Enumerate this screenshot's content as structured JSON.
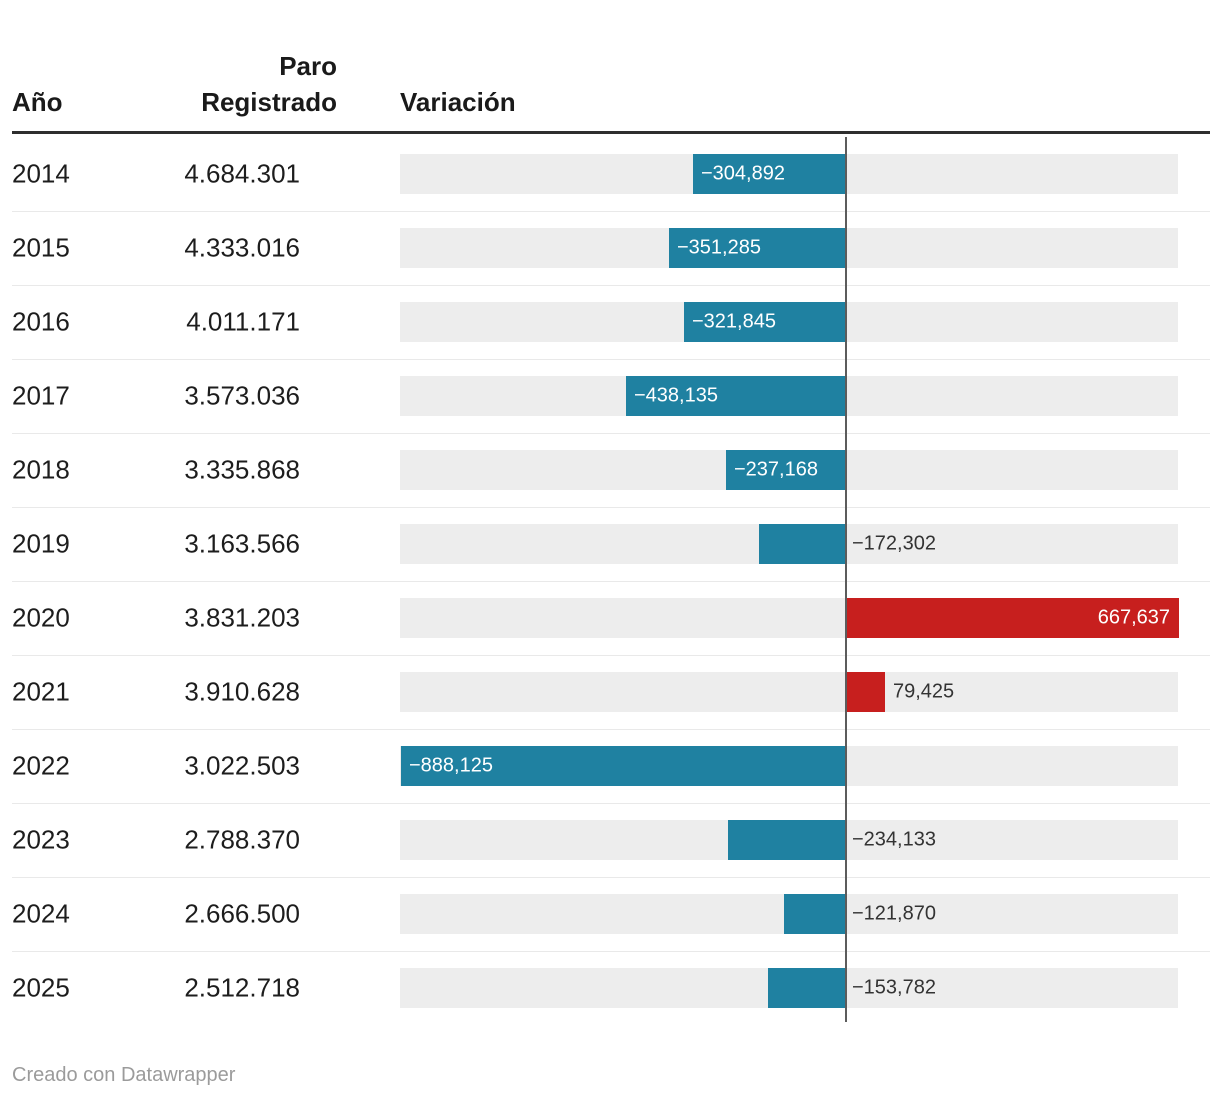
{
  "header": {
    "col_year": "Año",
    "col_paro": "Paro Registrado",
    "col_variacion": "Variación"
  },
  "footer": {
    "credit": "Creado con Datawrapper"
  },
  "colors": {
    "negative_bar": "#1f81a1",
    "positive_bar": "#c71f1e",
    "track": "#ededed",
    "zero_line": "#5c5c5c",
    "header_rule": "#2e2e2e",
    "inside_label": "#ffffff",
    "outside_label": "#333333"
  },
  "chart_data": {
    "type": "bar",
    "orientation": "horizontal",
    "title": "",
    "columns": [
      "Año",
      "Paro Registrado",
      "Variación"
    ],
    "x_domain": [
      -890000,
      667637
    ],
    "zero_line": true,
    "rows": [
      {
        "year": "2014",
        "paro": "4.684.301",
        "variacion": -304892,
        "label": "−304,892",
        "label_inside": true
      },
      {
        "year": "2015",
        "paro": "4.333.016",
        "variacion": -351285,
        "label": "−351,285",
        "label_inside": true
      },
      {
        "year": "2016",
        "paro": "4.011.171",
        "variacion": -321845,
        "label": "−321,845",
        "label_inside": true
      },
      {
        "year": "2017",
        "paro": "3.573.036",
        "variacion": -438135,
        "label": "−438,135",
        "label_inside": true
      },
      {
        "year": "2018",
        "paro": "3.335.868",
        "variacion": -237168,
        "label": "−237,168",
        "label_inside": true
      },
      {
        "year": "2019",
        "paro": "3.163.566",
        "variacion": -172302,
        "label": "−172,302",
        "label_inside": false
      },
      {
        "year": "2020",
        "paro": "3.831.203",
        "variacion": 667637,
        "label": "667,637",
        "label_inside": true
      },
      {
        "year": "2021",
        "paro": "3.910.628",
        "variacion": 79425,
        "label": "79,425",
        "label_inside": false
      },
      {
        "year": "2022",
        "paro": "3.022.503",
        "variacion": -888125,
        "label": "−888,125",
        "label_inside": true
      },
      {
        "year": "2023",
        "paro": "2.788.370",
        "variacion": -234133,
        "label": "−234,133",
        "label_inside": false
      },
      {
        "year": "2024",
        "paro": "2.666.500",
        "variacion": -121870,
        "label": "−121,870",
        "label_inside": false
      },
      {
        "year": "2025",
        "paro": "2.512.718",
        "variacion": -153782,
        "label": "−153,782",
        "label_inside": false
      }
    ]
  }
}
